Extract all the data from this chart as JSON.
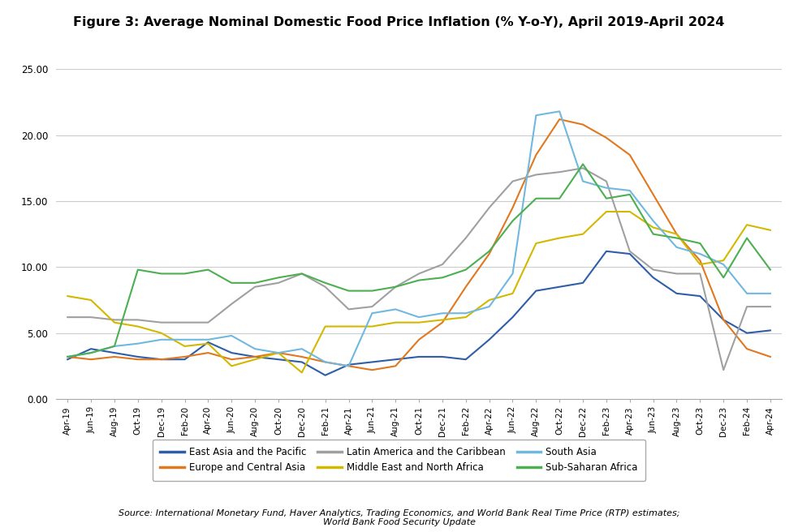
{
  "title": "Figure 3: Average Nominal Domestic Food Price Inflation (% Y-o-Y), April 2019-April 2024",
  "source_text": "Source: International Monetary Fund, Haver Analytics, Trading Economics, and World Bank Real Time Price (RTP) estimates;\nWorld Bank Food Security Update",
  "ylim": [
    0,
    25
  ],
  "yticks": [
    0.0,
    5.0,
    10.0,
    15.0,
    20.0,
    25.0
  ],
  "series_colors": {
    "East Asia and the Pacific": "#2E5EA8",
    "Europe and Central Asia": "#E07820",
    "Latin America and the Caribbean": "#A0A0A0",
    "Middle East and North Africa": "#D4B800",
    "South Asia": "#70B8E0",
    "Sub-Saharan Africa": "#4CAF50"
  },
  "x_labels": [
    "Apr-19",
    "Jun-19",
    "Aug-19",
    "Oct-19",
    "Dec-19",
    "Feb-20",
    "Apr-20",
    "Jun-20",
    "Aug-20",
    "Oct-20",
    "Dec-20",
    "Feb-21",
    "Apr-21",
    "Jun-21",
    "Aug-21",
    "Oct-21",
    "Dec-21",
    "Feb-22",
    "Apr-22",
    "Jun-22",
    "Aug-22",
    "Oct-22",
    "Dec-22",
    "Feb-23",
    "Apr-23",
    "Jun-23",
    "Aug-23",
    "Oct-23",
    "Dec-23",
    "Feb-24",
    "Apr-24"
  ],
  "series": {
    "East Asia and the Pacific": [
      3.0,
      3.8,
      3.5,
      3.2,
      3.0,
      3.0,
      4.3,
      3.5,
      3.2,
      3.0,
      2.8,
      1.8,
      2.6,
      2.8,
      3.0,
      3.2,
      3.2,
      3.0,
      4.5,
      6.2,
      8.2,
      8.5,
      8.8,
      11.2,
      11.0,
      9.2,
      8.0,
      7.8,
      6.0,
      5.0,
      5.2
    ],
    "Europe and Central Asia": [
      3.2,
      3.0,
      3.2,
      3.0,
      3.0,
      3.2,
      3.5,
      3.0,
      3.2,
      3.5,
      3.2,
      2.8,
      2.5,
      2.2,
      2.5,
      4.5,
      5.8,
      8.5,
      11.0,
      14.5,
      18.5,
      21.2,
      20.8,
      19.8,
      18.5,
      15.5,
      12.5,
      10.5,
      6.0,
      3.8,
      3.2
    ],
    "Latin America and the Caribbean": [
      6.2,
      6.2,
      6.0,
      6.0,
      5.8,
      5.8,
      5.8,
      7.2,
      8.5,
      8.8,
      9.5,
      8.5,
      6.8,
      7.0,
      8.5,
      9.5,
      10.2,
      12.2,
      14.5,
      16.5,
      17.0,
      17.2,
      17.5,
      16.5,
      11.2,
      9.8,
      9.5,
      9.5,
      2.2,
      7.0,
      7.0
    ],
    "Middle East and North Africa": [
      7.8,
      7.5,
      5.8,
      5.5,
      5.0,
      4.0,
      4.2,
      2.5,
      3.0,
      3.5,
      2.0,
      5.5,
      5.5,
      5.5,
      5.8,
      5.8,
      6.0,
      6.2,
      7.5,
      8.0,
      11.8,
      12.2,
      12.5,
      14.2,
      14.2,
      13.0,
      12.5,
      10.2,
      10.5,
      13.2,
      12.8
    ],
    "South Asia": [
      3.2,
      3.5,
      4.0,
      4.2,
      4.5,
      4.5,
      4.5,
      4.8,
      3.8,
      3.5,
      3.8,
      2.8,
      2.5,
      6.5,
      6.8,
      6.2,
      6.5,
      6.5,
      7.0,
      9.5,
      21.5,
      21.8,
      16.5,
      16.0,
      15.8,
      13.5,
      11.5,
      11.0,
      10.2,
      8.0,
      8.0
    ],
    "Sub-Saharan Africa": [
      3.2,
      3.5,
      4.0,
      9.8,
      9.5,
      9.5,
      9.8,
      8.8,
      8.8,
      9.2,
      9.5,
      8.8,
      8.2,
      8.2,
      8.5,
      9.0,
      9.2,
      9.8,
      11.2,
      13.5,
      15.2,
      15.2,
      17.8,
      15.2,
      15.5,
      12.5,
      12.2,
      11.8,
      9.2,
      12.2,
      9.8
    ]
  },
  "legend_order": [
    "East Asia and the Pacific",
    "Europe and Central Asia",
    "Latin America and the Caribbean",
    "Middle East and North Africa",
    "South Asia",
    "Sub-Saharan Africa"
  ]
}
